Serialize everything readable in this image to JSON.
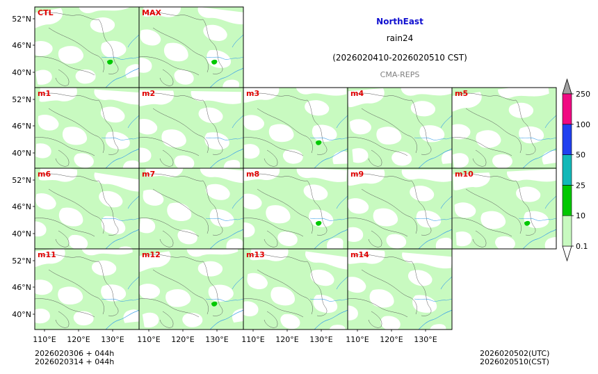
{
  "header": {
    "region": "NorthEast",
    "variable": "rain24",
    "period": "(2026020410-2026020510 CST)",
    "model": "CMA-REPS"
  },
  "axes": {
    "lat_labels": [
      "52°N",
      "46°N",
      "40°N"
    ],
    "lon_labels": [
      "110°E",
      "120°E",
      "130°E"
    ]
  },
  "panels": [
    {
      "label": "CTL",
      "heavy": true
    },
    {
      "label": "MAX",
      "heavy": true
    },
    {
      "label": "m1",
      "heavy": false
    },
    {
      "label": "m2",
      "heavy": false
    },
    {
      "label": "m3",
      "heavy": true
    },
    {
      "label": "m4",
      "heavy": false
    },
    {
      "label": "m5",
      "heavy": false
    },
    {
      "label": "m6",
      "heavy": false
    },
    {
      "label": "m7",
      "heavy": false
    },
    {
      "label": "m8",
      "heavy": true
    },
    {
      "label": "m9",
      "heavy": false
    },
    {
      "label": "m10",
      "heavy": true
    },
    {
      "label": "m11",
      "heavy": false
    },
    {
      "label": "m12",
      "heavy": true
    },
    {
      "label": "m13",
      "heavy": false
    },
    {
      "label": "m14",
      "heavy": false
    }
  ],
  "colorbar": {
    "levels": [
      "0.1",
      "10",
      "25",
      "50",
      "100",
      "250"
    ],
    "colors": [
      "#c8fac0",
      "#00c800",
      "#12b8b8",
      "#2040f0",
      "#f00a82"
    ],
    "over_color": "#a0a0a0",
    "under_color": "#ffffff"
  },
  "footer": {
    "init_1": "2026020306  +  044h",
    "init_2": "2026020314  +  044h",
    "valid_utc": "2026020502(UTC)",
    "valid_cst": "2026020510(CST)"
  }
}
